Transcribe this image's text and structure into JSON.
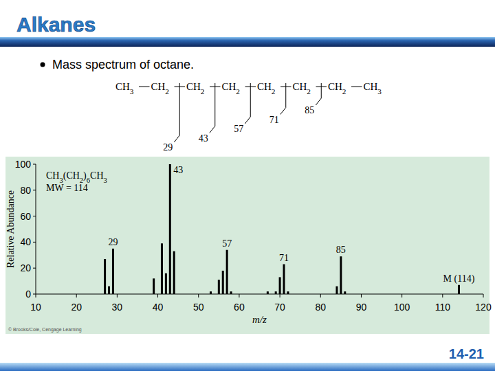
{
  "slide": {
    "title": "Alkanes",
    "bullet": "Mass spectrum of octane.",
    "page": "14-21",
    "credit": "© Brooks/Cole, Cengage Learning"
  },
  "structure": {
    "groups": [
      "CH3",
      "CH2",
      "CH2",
      "CH2",
      "CH2",
      "CH2",
      "CH2",
      "CH3"
    ],
    "fragments": [
      29,
      43,
      57,
      71,
      85
    ]
  },
  "chart_data": {
    "type": "bar",
    "x": [
      27,
      28,
      29,
      39,
      41,
      42,
      43,
      44,
      53,
      55,
      56,
      57,
      58,
      67,
      69,
      70,
      71,
      72,
      84,
      85,
      86,
      114
    ],
    "values": [
      27,
      6,
      35,
      12,
      39,
      16,
      100,
      33,
      2,
      11,
      18,
      34,
      2,
      2,
      2,
      13,
      23,
      2,
      6,
      29,
      2,
      7
    ],
    "color": "#000000",
    "xlim": [
      10,
      120
    ],
    "ylim": [
      0,
      100
    ],
    "xticks": [
      10,
      20,
      30,
      40,
      50,
      60,
      70,
      80,
      90,
      100,
      110,
      120
    ],
    "yticks": [
      0,
      20,
      40,
      60,
      80,
      100
    ],
    "x_label": "m/z",
    "y_label": "Relative Abundance",
    "formula": "CH3(CH2)6CH3",
    "mw_label": "MW = 114",
    "annotations": [
      {
        "text": "29",
        "x": 29
      },
      {
        "text": "43",
        "x": 43
      },
      {
        "text": "57",
        "x": 57
      },
      {
        "text": "71",
        "x": 71
      },
      {
        "text": "85",
        "x": 85
      },
      {
        "text": "M (114)",
        "x": 114
      }
    ]
  }
}
